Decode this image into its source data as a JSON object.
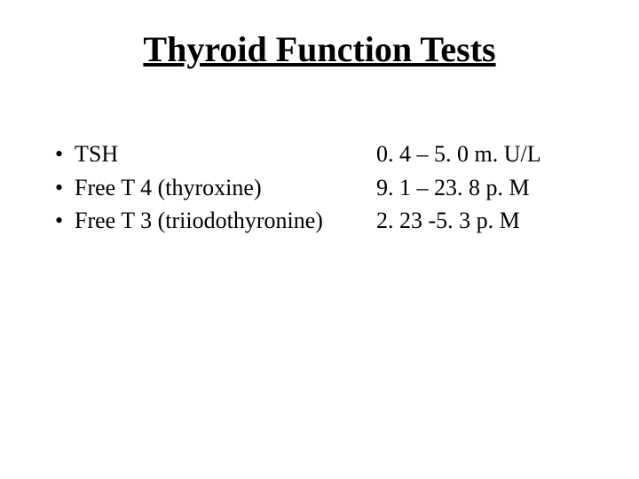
{
  "title": "Thyroid Function Tests",
  "rows": [
    {
      "bullet": "•",
      "test": "TSH",
      "range": "0. 4 – 5. 0 m. U/L"
    },
    {
      "bullet": "•",
      "test": "Free T 4 (thyroxine)",
      "range": "9. 1 – 23. 8 p. M"
    },
    {
      "bullet": "•",
      "test": "Free T 3 (triiodothyronine)",
      "range": "2. 23 -5. 3 p. M"
    }
  ]
}
